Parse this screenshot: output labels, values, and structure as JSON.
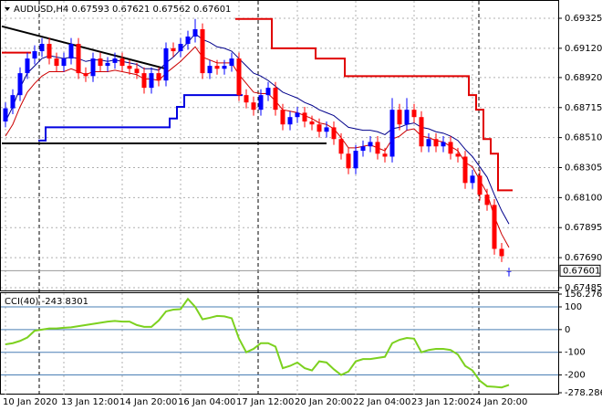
{
  "chart_data": [
    {
      "type": "candlestick",
      "title": "AUDUSD,H4  0.67593 0.67621 0.67562 0.67601",
      "categories": [
        "10 Jan 2020",
        null,
        null,
        null,
        null,
        null,
        null,
        null,
        "13 Jan 12:00",
        null,
        null,
        null,
        null,
        null,
        null,
        null,
        "14 Jan 20:00",
        null,
        null,
        null,
        null,
        null,
        null,
        null,
        "16 Jan 04:00",
        null,
        null,
        null,
        null,
        null,
        null,
        null,
        "17 Jan 12:00",
        null,
        null,
        null,
        null,
        null,
        null,
        null,
        "20 Jan 20:00",
        null,
        null,
        null,
        null,
        null,
        null,
        null,
        "22 Jan 04:00",
        null,
        null,
        null,
        null,
        null,
        null,
        null,
        "23 Jan 12:00",
        null,
        null,
        null,
        null,
        null,
        null,
        null,
        "24 Jan 20:00",
        null,
        null,
        null,
        null,
        null
      ],
      "candles": [
        [
          0.6862,
          0.6875,
          0.6858,
          0.6871
        ],
        [
          0.6871,
          0.6884,
          0.6867,
          0.688
        ],
        [
          0.688,
          0.6899,
          0.6876,
          0.6895
        ],
        [
          0.6895,
          0.6909,
          0.6891,
          0.6905
        ],
        [
          0.6905,
          0.6914,
          0.6901,
          0.691
        ],
        [
          0.691,
          0.6919,
          0.6906,
          0.6915
        ],
        [
          0.6915,
          0.6919,
          0.6901,
          0.6905
        ],
        [
          0.6905,
          0.6909,
          0.6896,
          0.69
        ],
        [
          0.69,
          0.6909,
          0.6896,
          0.6905
        ],
        [
          0.6905,
          0.6919,
          0.6901,
          0.6915
        ],
        [
          0.6915,
          0.6919,
          0.6891,
          0.6895
        ],
        [
          0.6895,
          0.6899,
          0.6889,
          0.6893
        ],
        [
          0.6893,
          0.6909,
          0.6889,
          0.6905
        ],
        [
          0.6905,
          0.6909,
          0.6896,
          0.69
        ],
        [
          0.69,
          0.6906,
          0.6896,
          0.6902
        ],
        [
          0.6902,
          0.6909,
          0.6898,
          0.6905
        ],
        [
          0.6905,
          0.6909,
          0.6896,
          0.69
        ],
        [
          0.69,
          0.6904,
          0.6894,
          0.6898
        ],
        [
          0.6898,
          0.6902,
          0.6891,
          0.6895
        ],
        [
          0.6895,
          0.6899,
          0.6881,
          0.6885
        ],
        [
          0.6885,
          0.6899,
          0.6881,
          0.6895
        ],
        [
          0.6895,
          0.6899,
          0.6886,
          0.689
        ],
        [
          0.689,
          0.6916,
          0.6886,
          0.6912
        ],
        [
          0.6912,
          0.6916,
          0.6906,
          0.691
        ],
        [
          0.691,
          0.6919,
          0.6906,
          0.6915
        ],
        [
          0.6915,
          0.6924,
          0.6911,
          0.692
        ],
        [
          0.692,
          0.6932,
          0.6916,
          0.6925
        ],
        [
          0.6925,
          0.6929,
          0.6891,
          0.6895
        ],
        [
          0.6895,
          0.6904,
          0.6891,
          0.69
        ],
        [
          0.69,
          0.6904,
          0.6894,
          0.6898
        ],
        [
          0.6898,
          0.6904,
          0.6894,
          0.69
        ],
        [
          0.69,
          0.6909,
          0.6896,
          0.6905
        ],
        [
          0.6905,
          0.6909,
          0.6876,
          0.688
        ],
        [
          0.688,
          0.6884,
          0.6871,
          0.6875
        ],
        [
          0.6875,
          0.6879,
          0.6866,
          0.687
        ],
        [
          0.687,
          0.6884,
          0.6866,
          0.688
        ],
        [
          0.688,
          0.6889,
          0.6876,
          0.6885
        ],
        [
          0.6885,
          0.6889,
          0.6866,
          0.687
        ],
        [
          0.687,
          0.6874,
          0.6856,
          0.686
        ],
        [
          0.686,
          0.6869,
          0.6856,
          0.6865
        ],
        [
          0.6865,
          0.6872,
          0.6861,
          0.6868
        ],
        [
          0.6868,
          0.6872,
          0.6858,
          0.6862
        ],
        [
          0.6862,
          0.6866,
          0.6856,
          0.686
        ],
        [
          0.686,
          0.6864,
          0.6851,
          0.6855
        ],
        [
          0.6855,
          0.6862,
          0.6851,
          0.6858
        ],
        [
          0.6858,
          0.6862,
          0.6846,
          0.685
        ],
        [
          0.685,
          0.6854,
          0.6836,
          0.684
        ],
        [
          0.684,
          0.6844,
          0.6826,
          0.683
        ],
        [
          0.683,
          0.6846,
          0.6826,
          0.6842
        ],
        [
          0.6842,
          0.6849,
          0.6838,
          0.6845
        ],
        [
          0.6845,
          0.6852,
          0.6841,
          0.6848
        ],
        [
          0.6848,
          0.6852,
          0.6836,
          0.684
        ],
        [
          0.684,
          0.6844,
          0.6834,
          0.6838
        ],
        [
          0.6838,
          0.6878,
          0.6834,
          0.687
        ],
        [
          0.687,
          0.6874,
          0.6856,
          0.686
        ],
        [
          0.686,
          0.6878,
          0.6856,
          0.687
        ],
        [
          0.687,
          0.6874,
          0.6861,
          0.6865
        ],
        [
          0.6865,
          0.6869,
          0.6841,
          0.6845
        ],
        [
          0.6845,
          0.6854,
          0.6841,
          0.685
        ],
        [
          0.685,
          0.6854,
          0.6841,
          0.6845
        ],
        [
          0.6845,
          0.6852,
          0.6841,
          0.6848
        ],
        [
          0.6848,
          0.6852,
          0.6836,
          0.684
        ],
        [
          0.684,
          0.6844,
          0.6834,
          0.6838
        ],
        [
          0.6838,
          0.6842,
          0.6816,
          0.682
        ],
        [
          0.682,
          0.6829,
          0.6816,
          0.6825
        ],
        [
          0.6825,
          0.6829,
          0.6808,
          0.6812
        ],
        [
          0.6812,
          0.6816,
          0.6801,
          0.6805
        ],
        [
          0.6805,
          0.6809,
          0.6771,
          0.6775
        ],
        [
          0.6775,
          0.6779,
          0.6766,
          0.677
        ],
        [
          0.67593,
          0.67621,
          0.67562,
          0.67601
        ]
      ],
      "up_color": "#0000ff",
      "down_color": "#ff0000",
      "overlays": [
        {
          "style": "step",
          "color": "#e00000",
          "width": 2,
          "values": [
            0.6909,
            0.6909,
            0.6909,
            0.6909,
            null,
            null,
            null,
            null,
            null,
            null,
            null,
            null,
            null,
            null,
            null,
            null,
            null,
            null,
            null,
            null,
            null,
            null,
            null,
            null,
            null,
            null,
            null,
            null,
            null,
            null,
            null,
            null,
            0.6932,
            0.6932,
            0.6932,
            0.6932,
            0.6932,
            0.6912,
            0.6912,
            0.6912,
            0.6912,
            0.6912,
            0.6912,
            0.6905,
            0.6905,
            0.6905,
            0.6905,
            0.6893,
            0.6893,
            0.6893,
            0.6893,
            0.6893,
            0.6893,
            0.6893,
            0.6893,
            0.6893,
            0.6893,
            0.6893,
            0.6893,
            0.6893,
            0.6893,
            0.6893,
            0.6893,
            0.6893,
            0.688,
            0.687,
            0.685,
            0.684,
            0.6815,
            0.6815
          ]
        },
        {
          "style": "step",
          "color": "#0000e0",
          "width": 2,
          "values": [
            null,
            null,
            null,
            null,
            null,
            0.6849,
            0.6858,
            0.6858,
            0.6858,
            0.6858,
            0.6858,
            0.6858,
            0.6858,
            0.6858,
            0.6858,
            0.6858,
            0.6858,
            0.6858,
            0.6858,
            0.6858,
            0.6858,
            0.6858,
            0.6858,
            0.6864,
            0.6872,
            0.688,
            0.688,
            0.688,
            0.688,
            0.688,
            0.688,
            0.688,
            0.688,
            null,
            null,
            null,
            null,
            null,
            null,
            null,
            null,
            null,
            null,
            null,
            null,
            null,
            null,
            null,
            null,
            null,
            null,
            null,
            null,
            null,
            null,
            null,
            null,
            null,
            null,
            null,
            null,
            null,
            null,
            null,
            null,
            null,
            null,
            null,
            null,
            null
          ]
        },
        {
          "style": "line",
          "color": "#00008b",
          "width": 1,
          "values": [
            0.6862,
            0.6872,
            0.6885,
            0.6895,
            0.69,
            0.6905,
            0.6907,
            0.6906,
            0.6905,
            0.6906,
            0.6905,
            0.6903,
            0.6904,
            0.6904,
            0.6903,
            0.6904,
            0.6903,
            0.6902,
            0.6901,
            0.6898,
            0.6898,
            0.6897,
            0.6902,
            0.6906,
            0.6911,
            0.6916,
            0.6922,
            0.6918,
            0.6916,
            0.6913,
            0.6912,
            0.691,
            0.6905,
            0.69,
            0.6895,
            0.6893,
            0.689,
            0.6886,
            0.6882,
            0.688,
            0.6878,
            0.6875,
            0.6873,
            0.687,
            0.6868,
            0.6866,
            0.6862,
            0.6858,
            0.6857,
            0.6856,
            0.6856,
            0.6855,
            0.6853,
            0.6857,
            0.6858,
            0.686,
            0.6861,
            0.6858,
            0.6857,
            0.6855,
            0.6854,
            0.6852,
            0.6849,
            0.6843,
            0.6838,
            0.6831,
            0.6824,
            0.6812,
            0.6801,
            0.6792
          ]
        },
        {
          "style": "line",
          "color": "#cc0000",
          "width": 1,
          "values": [
            0.6852,
            0.686,
            0.6872,
            0.6882,
            0.6888,
            0.6893,
            0.6896,
            0.6896,
            0.6896,
            0.6898,
            0.6896,
            0.6894,
            0.6896,
            0.6896,
            0.6896,
            0.6897,
            0.6896,
            0.6895,
            0.6894,
            0.6891,
            0.6891,
            0.689,
            0.6895,
            0.6899,
            0.6903,
            0.6908,
            0.6913,
            0.6906,
            0.6904,
            0.6902,
            0.6902,
            0.6902,
            0.6894,
            0.6888,
            0.6882,
            0.6881,
            0.6881,
            0.6876,
            0.687,
            0.6869,
            0.6868,
            0.6866,
            0.6864,
            0.6861,
            0.686,
            0.6857,
            0.6851,
            0.6844,
            0.6844,
            0.6845,
            0.6846,
            0.6844,
            0.6842,
            0.685,
            0.6852,
            0.6856,
            0.6857,
            0.6852,
            0.6851,
            0.6849,
            0.6848,
            0.6845,
            0.6842,
            0.6834,
            0.6831,
            0.6822,
            0.6813,
            0.6797,
            0.6785,
            0.6776
          ]
        }
      ],
      "trendlines": [
        {
          "color": "#000000",
          "x": [
            -0.5,
            22
          ],
          "y": [
            0.6927,
            0.6898
          ]
        },
        {
          "color": "#000000",
          "x": [
            -0.5,
            44
          ],
          "y": [
            0.6847,
            0.6847
          ]
        }
      ],
      "ylim": [
        0.67466,
        0.69431
      ],
      "yticks": [
        0.69325,
        {
          "value": 0.6912,
          "label": "0.69120"
        },
        {
          "value": 0.6892,
          "label": "0.68920"
        },
        0.68715,
        {
          "value": 0.6851,
          "label": "0.68510"
        },
        0.68305,
        {
          "value": 0.681,
          "label": "0.68100"
        },
        0.67895,
        {
          "value": 0.6769,
          "label": "0.67690"
        },
        0.67485
      ],
      "grid": true
    },
    {
      "type": "line",
      "title": "CCI(40) -243.8301",
      "color": "#7cd11f",
      "level_color": "#4a7fb5",
      "values": [
        -65,
        -60,
        -50,
        -35,
        -5,
        0,
        5,
        5,
        8,
        10,
        15,
        20,
        25,
        30,
        35,
        38,
        35,
        35,
        20,
        12,
        12,
        40,
        80,
        88,
        90,
        135,
        100,
        45,
        52,
        60,
        58,
        50,
        -40,
        -100,
        -85,
        -60,
        -60,
        -75,
        -170,
        -160,
        -145,
        -170,
        -180,
        -140,
        -145,
        -175,
        -200,
        -185,
        -140,
        -130,
        -130,
        -125,
        -120,
        -60,
        -45,
        -37,
        -40,
        -100,
        -90,
        -85,
        -85,
        -90,
        -110,
        -160,
        -180,
        -225,
        -250,
        -252,
        -255,
        -243.8301
      ],
      "ylim": [
        -278.2869,
        156.276
      ],
      "yticks": [
        156.276,
        100,
        0,
        -100,
        -200,
        -278.2869
      ]
    }
  ]
}
